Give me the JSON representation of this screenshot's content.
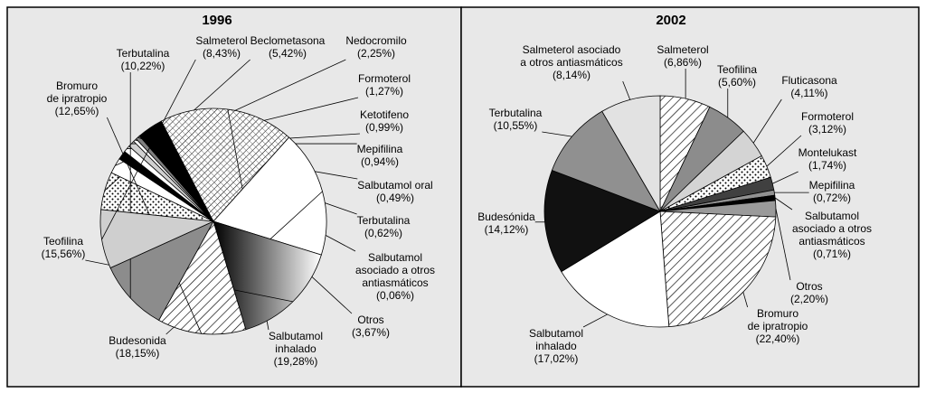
{
  "chart_data": [
    {
      "type": "pie",
      "title": "1996",
      "categories": [
        "Beclometasona",
        "Nedocromilo",
        "Formoterol",
        "Ketotifeno",
        "Mepifilina",
        "Salbutamol oral",
        "Terbutalina",
        "Salbutamol\nasociado a otros\nantiasmáticos",
        "Otros",
        "Salbutamol\ninhalado",
        "Budesonida",
        "Teofilina",
        "Bromuro\nde ipratropio",
        "Terbutalina",
        "Salmeterol"
      ],
      "values": [
        5.42,
        2.25,
        1.27,
        0.99,
        0.94,
        0.49,
        0.62,
        0.06,
        3.67,
        19.28,
        18.15,
        15.56,
        12.65,
        10.22,
        8.43
      ],
      "value_labels": [
        "(5,42%)",
        "(2,25%)",
        "(1,27%)",
        "(0,99%)",
        "(0,94%)",
        "(0,49%)",
        "(0,62%)",
        "(0,06%)",
        "(3,67%)",
        "(19,28%)",
        "(18,15%)",
        "(15,56%)",
        "(12,65%)",
        "(10,22%)",
        "(8,43%)"
      ],
      "colors": [
        "url(#dots)",
        "#ffffff",
        "#000000",
        "#ffffff",
        "#d0d0d0",
        "#ffffff",
        "#808080",
        "#ffffff",
        "#000000",
        "url(#cross)",
        "#ffffff",
        "url(#grad)",
        "url(#hatch)",
        "#8c8c8c",
        "#cfcfcf"
      ]
    },
    {
      "type": "pie",
      "title": "2002",
      "categories": [
        "Salmeterol",
        "Teofilina",
        "Fluticasona",
        "Formoterol",
        "Montelukast",
        "Mepifilina",
        "Salbutamol\nasociado a otros\nantiasmáticos",
        "Otros",
        "Bromuro\nde ipratropio",
        "Salbutamol\ninhalado",
        "Budesónida",
        "Terbutalina",
        "Salmeterol asociado\na otros antiasmáticos"
      ],
      "values": [
        6.86,
        5.6,
        4.11,
        3.12,
        1.74,
        0.72,
        0.71,
        2.2,
        22.4,
        17.02,
        14.12,
        10.55,
        8.14
      ],
      "value_labels": [
        "(6,86%)",
        "(5,60%)",
        "(4,11%)",
        "(3,12%)",
        "(1,74%)",
        "(0,72%)",
        "(0,71%)",
        "(2,20%)",
        "(22,40%)",
        "(17,02%)",
        "(14,12%)",
        "(10,55%)",
        "(8,14%)"
      ],
      "colors": [
        "url(#hatch)",
        "#8c8c8c",
        "#d4d4d4",
        "url(#dots)",
        "#404040",
        "#909090",
        "#000000",
        "#9a9a9a",
        "url(#hatch)",
        "#ffffff",
        "#111111",
        "#909090",
        "#e2e2e2"
      ]
    }
  ]
}
